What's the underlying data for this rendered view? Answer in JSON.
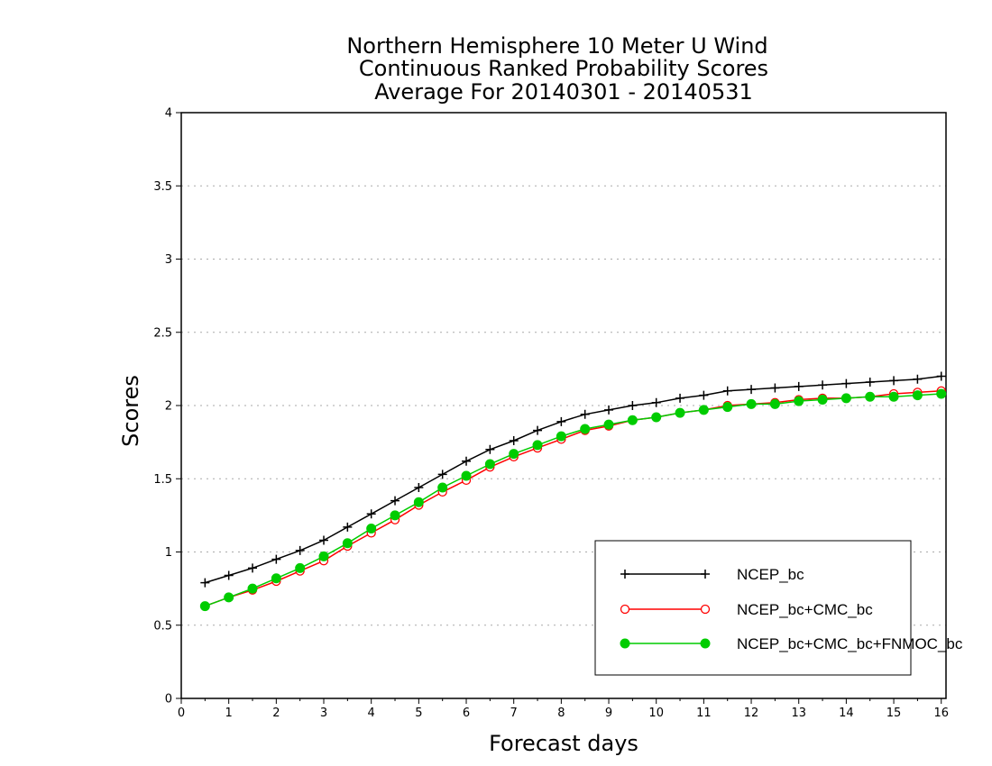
{
  "chart_data": {
    "type": "line",
    "title": [
      "Northern Hemisphere 10 Meter U Wind",
      "Continuous Ranked Probability Scores",
      "Average For 20140301 - 20140531"
    ],
    "xlabel": "Forecast days",
    "ylabel": "Scores",
    "xlim": [
      0,
      16.1
    ],
    "ylim": [
      0,
      4
    ],
    "x_ticks": [
      0,
      1,
      2,
      3,
      4,
      5,
      6,
      7,
      8,
      9,
      10,
      11,
      12,
      13,
      14,
      15,
      16
    ],
    "y_ticks": [
      0,
      0.5,
      1,
      1.5,
      2,
      2.5,
      3,
      3.5,
      4
    ],
    "y_tick_labels": [
      "0",
      "0.5",
      "1",
      "1.5",
      "2",
      "2.5",
      "3",
      "3.5",
      "4"
    ],
    "grid": "horizontal dotted",
    "legend_position": "bottom-right",
    "x": [
      0.5,
      1,
      1.5,
      2,
      2.5,
      3,
      3.5,
      4,
      4.5,
      5,
      5.5,
      6,
      6.5,
      7,
      7.5,
      8,
      8.5,
      9,
      9.5,
      10,
      10.5,
      11,
      11.5,
      12,
      12.5,
      13,
      13.5,
      14,
      14.5,
      15,
      15.5,
      16
    ],
    "series": [
      {
        "name": "NCEP_bc",
        "color": "#000000",
        "marker": "plus",
        "values": [
          0.79,
          0.84,
          0.89,
          0.95,
          1.01,
          1.08,
          1.17,
          1.26,
          1.35,
          1.44,
          1.53,
          1.62,
          1.7,
          1.76,
          1.83,
          1.89,
          1.94,
          1.97,
          2.0,
          2.02,
          2.05,
          2.07,
          2.1,
          2.11,
          2.12,
          2.13,
          2.14,
          2.15,
          2.16,
          2.17,
          2.18,
          2.2
        ]
      },
      {
        "name": "NCEP_bc+CMC_bc",
        "color": "#ff0000",
        "marker": "open-circle",
        "values": [
          0.63,
          0.69,
          0.74,
          0.8,
          0.87,
          0.94,
          1.04,
          1.13,
          1.22,
          1.32,
          1.41,
          1.49,
          1.58,
          1.65,
          1.71,
          1.77,
          1.83,
          1.86,
          1.9,
          1.92,
          1.95,
          1.97,
          2.0,
          2.01,
          2.02,
          2.04,
          2.05,
          2.05,
          2.06,
          2.08,
          2.09,
          2.1
        ]
      },
      {
        "name": "NCEP_bc+CMC_bc+FNMOC_bc",
        "color": "#00cc00",
        "marker": "filled-circle",
        "values": [
          0.63,
          0.69,
          0.75,
          0.82,
          0.89,
          0.97,
          1.06,
          1.16,
          1.25,
          1.34,
          1.44,
          1.52,
          1.6,
          1.67,
          1.73,
          1.79,
          1.84,
          1.87,
          1.9,
          1.92,
          1.95,
          1.97,
          1.99,
          2.01,
          2.01,
          2.03,
          2.04,
          2.05,
          2.06,
          2.06,
          2.07,
          2.08
        ]
      }
    ]
  }
}
